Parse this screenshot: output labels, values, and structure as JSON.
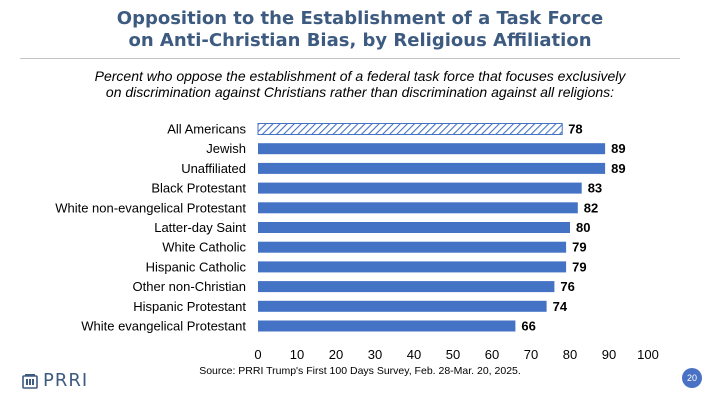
{
  "header": {
    "title_line1": "Opposition to the Establishment of a Task Force",
    "title_line2": "on Anti-Christian Bias, by Religious Affiliation"
  },
  "subtitle_line1": "Percent who oppose the establishment of a federal task force that focuses exclusively",
  "subtitle_line2": "on discrimination against Christians rather than discrimination against all religions:",
  "chart_data": {
    "type": "bar",
    "orientation": "horizontal",
    "title": "Opposition to the Establishment of a Task Force on Anti-Christian Bias, by Religious Affiliation",
    "subtitle": "Percent who oppose the establishment of a federal task force that focuses exclusively on discrimination against Christians rather than discrimination against all religions:",
    "categories": [
      "All Americans",
      "Jewish",
      "Unaffiliated",
      "Black Protestant",
      "White non-evangelical Protestant",
      "Latter-day Saint",
      "White Catholic",
      "Hispanic Catholic",
      "Other non-Christian",
      "Hispanic Protestant",
      "White evangelical Protestant"
    ],
    "values": [
      78,
      89,
      89,
      83,
      82,
      80,
      79,
      79,
      76,
      74,
      66
    ],
    "highlight": [
      "hatched",
      "solid",
      "solid",
      "solid",
      "solid",
      "solid",
      "solid",
      "solid",
      "solid",
      "solid",
      "solid"
    ],
    "xlim": [
      0,
      100
    ],
    "xticks": [
      0,
      10,
      20,
      30,
      40,
      50,
      60,
      70,
      80,
      90,
      100
    ],
    "grid": false,
    "colors": {
      "bar": "#4472c4",
      "hatch": "#4472c4"
    }
  },
  "footer": {
    "logo_text": "PRRI",
    "source": "Source: PRRI Trump's First 100 Days Survey, Feb. 28-Mar. 20, 2025.",
    "page_number": "20"
  }
}
